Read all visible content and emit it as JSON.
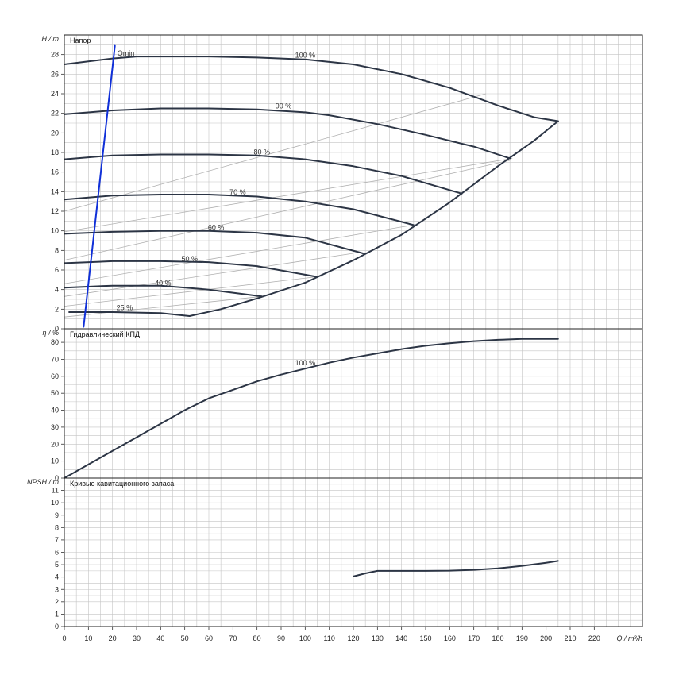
{
  "chart_data": {
    "type": "line",
    "x_axis": {
      "label": "Q / m³/h",
      "range": [
        0,
        240
      ],
      "ticks": [
        0,
        10,
        20,
        30,
        40,
        50,
        60,
        70,
        80,
        90,
        100,
        110,
        120,
        130,
        140,
        150,
        160,
        170,
        180,
        190,
        200,
        210,
        220
      ]
    },
    "grid": true,
    "panels": [
      {
        "id": "head",
        "title": "Напор",
        "ylabel": "H / m",
        "ylim": [
          0,
          30
        ],
        "yticks": [
          0,
          2,
          4,
          6,
          8,
          10,
          12,
          14,
          16,
          18,
          20,
          22,
          24,
          26,
          28
        ],
        "curves": [
          {
            "name": "100 %",
            "x": [
              0,
              10,
              20,
              30,
              40,
              60,
              80,
              100,
              120,
              140,
              160,
              180,
              195,
              205
            ],
            "y": [
              27,
              27.3,
              27.6,
              27.8,
              27.8,
              27.8,
              27.7,
              27.5,
              27,
              26,
              24.6,
              22.8,
              21.6,
              21.2
            ]
          },
          {
            "name": "90 %",
            "x": [
              0,
              20,
              40,
              60,
              80,
              100,
              110,
              130,
              150,
              170,
              185
            ],
            "y": [
              21.9,
              22.3,
              22.5,
              22.5,
              22.4,
              22.1,
              21.8,
              20.9,
              19.8,
              18.6,
              17.4
            ]
          },
          {
            "name": "80 %",
            "x": [
              0,
              20,
              40,
              60,
              80,
              100,
              120,
              140,
              165
            ],
            "y": [
              17.3,
              17.7,
              17.8,
              17.8,
              17.7,
              17.3,
              16.6,
              15.6,
              13.8
            ]
          },
          {
            "name": "70 %",
            "x": [
              0,
              20,
              40,
              60,
              80,
              100,
              120,
              145
            ],
            "y": [
              13.2,
              13.6,
              13.7,
              13.7,
              13.5,
              13,
              12.2,
              10.6
            ]
          },
          {
            "name": "60 %",
            "x": [
              0,
              20,
              40,
              60,
              80,
              100,
              124
            ],
            "y": [
              9.7,
              9.9,
              10,
              10,
              9.8,
              9.3,
              7.7
            ]
          },
          {
            "name": "50 %",
            "x": [
              0,
              20,
              40,
              60,
              80,
              105
            ],
            "y": [
              6.7,
              6.9,
              6.9,
              6.8,
              6.4,
              5.3
            ]
          },
          {
            "name": "40 %",
            "x": [
              0,
              20,
              40,
              60,
              82
            ],
            "y": [
              4.2,
              4.4,
              4.4,
              4,
              3.3
            ]
          },
          {
            "name": "25 %",
            "x": [
              2,
              20,
              40,
              52
            ],
            "y": [
              1.7,
              1.7,
              1.6,
              1.3
            ]
          },
          {
            "name": "",
            "x": [
              52,
              65,
              80,
              100,
              120,
              140,
              160,
              180,
              195,
              205
            ],
            "y": [
              1.3,
              2,
              3.1,
              4.7,
              7,
              9.6,
              12.9,
              16.6,
              19.2,
              21.2
            ]
          },
          {
            "name": "Qmin",
            "color": "#1030d8",
            "x": [
              8,
              21
            ],
            "y": [
              0.2,
              28.9
            ]
          }
        ],
        "guides": [
          {
            "x": [
              0,
              175
            ],
            "y": [
              12,
              24
            ]
          },
          {
            "x": [
              0,
              186
            ],
            "y": [
              9.9,
              17.4
            ]
          },
          {
            "x": [
              0,
              185
            ],
            "y": [
              7,
              17.2
            ]
          },
          {
            "x": [
              0,
              145
            ],
            "y": [
              4.6,
              10.6
            ]
          },
          {
            "x": [
              0,
              120
            ],
            "y": [
              3.3,
              7.7
            ]
          },
          {
            "x": [
              0,
              108
            ],
            "y": [
              2.3,
              5.4
            ]
          },
          {
            "x": [
              0,
              82
            ],
            "y": [
              1.2,
              3.3
            ]
          }
        ],
        "labels": [
          {
            "text": "Qmin",
            "x": 22,
            "y": 27.9
          },
          {
            "text": "100 %",
            "x": 100,
            "y": 27.7
          },
          {
            "text": "90 %",
            "x": 91,
            "y": 22.5
          },
          {
            "text": "80 %",
            "x": 82,
            "y": 17.8
          },
          {
            "text": "70 %",
            "x": 72,
            "y": 13.7
          },
          {
            "text": "60 %",
            "x": 63,
            "y": 10.1
          },
          {
            "text": "50 %",
            "x": 52,
            "y": 6.9
          },
          {
            "text": "40 %",
            "x": 41,
            "y": 4.4
          },
          {
            "text": "25 %",
            "x": 25,
            "y": 1.9
          }
        ]
      },
      {
        "id": "efficiency",
        "title": "Гидравлический КПД",
        "ylabel": "η / %",
        "ylim": [
          0,
          88
        ],
        "yticks": [
          0,
          10,
          20,
          30,
          40,
          50,
          60,
          70,
          80
        ],
        "curves": [
          {
            "name": "100 %",
            "x": [
              0,
              10,
              20,
              30,
              40,
              50,
              60,
              70,
              80,
              90,
              100,
              110,
              120,
              130,
              140,
              150,
              160,
              170,
              180,
              190,
              200,
              205
            ],
            "y": [
              0,
              8,
              16,
              24,
              32,
              40,
              47,
              52,
              57,
              61,
              64.5,
              68,
              71,
              73.5,
              76,
              78,
              79.5,
              80.7,
              81.5,
              82,
              82,
              82
            ]
          }
        ],
        "labels": [
          {
            "text": "100 %",
            "x": 100,
            "y": 66.5
          }
        ]
      },
      {
        "id": "npsh",
        "title": "Кривые кавитационного запаса",
        "ylabel": "NPSH / m",
        "ylim": [
          0,
          12
        ],
        "yticks": [
          0,
          1,
          2,
          3,
          4,
          5,
          6,
          7,
          8,
          9,
          10,
          11
        ],
        "curves": [
          {
            "name": "",
            "x": [
              120,
              125,
              130,
              135,
              140,
              150,
              160,
              170,
              180,
              190,
              200,
              205
            ],
            "y": [
              4.05,
              4.3,
              4.5,
              4.5,
              4.5,
              4.5,
              4.52,
              4.58,
              4.7,
              4.9,
              5.15,
              5.3
            ]
          }
        ]
      }
    ]
  }
}
